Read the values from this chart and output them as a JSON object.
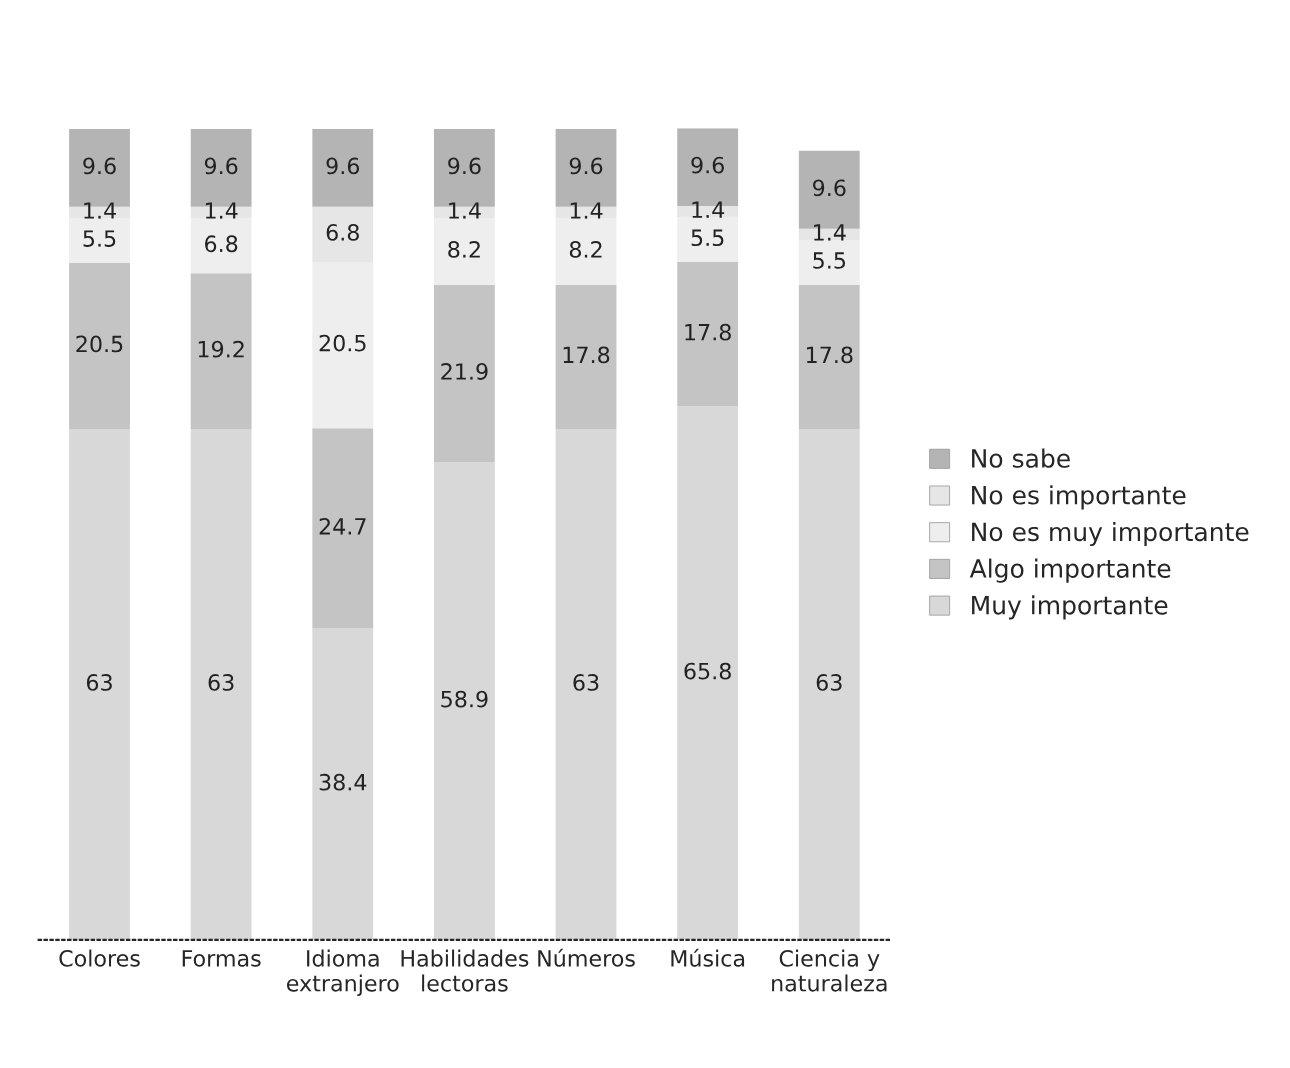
{
  "chart_data": {
    "type": "bar",
    "stacked": true,
    "data_labels": true,
    "legend": "right",
    "categories": [
      "Colores",
      "Formas",
      "Idioma\nextranjero",
      "Habilidades\nlectoras",
      "Números",
      "Música",
      "Ciencia y\nnaturaleza"
    ],
    "series": [
      {
        "name": "Muy importante",
        "color": "#d8d8d8",
        "values": [
          63,
          63,
          38.4,
          58.9,
          63,
          65.8,
          63
        ]
      },
      {
        "name": "Algo importante",
        "color": "#c4c4c4",
        "values": [
          20.5,
          19.2,
          24.7,
          21.9,
          17.8,
          17.8,
          17.8
        ]
      },
      {
        "name": "No es muy importante",
        "color": "#eeeeee",
        "values": [
          5.5,
          6.8,
          20.5,
          8.2,
          8.2,
          5.5,
          5.5
        ]
      },
      {
        "name": "No es importante",
        "color": "#e6e6e6",
        "values": [
          1.4,
          1.4,
          6.8,
          1.4,
          1.4,
          1.4,
          1.4
        ]
      },
      {
        "name": "No sabe",
        "color": "#b4b4b4",
        "values": [
          9.6,
          9.6,
          9.6,
          9.6,
          9.6,
          9.6,
          9.6
        ]
      }
    ]
  }
}
